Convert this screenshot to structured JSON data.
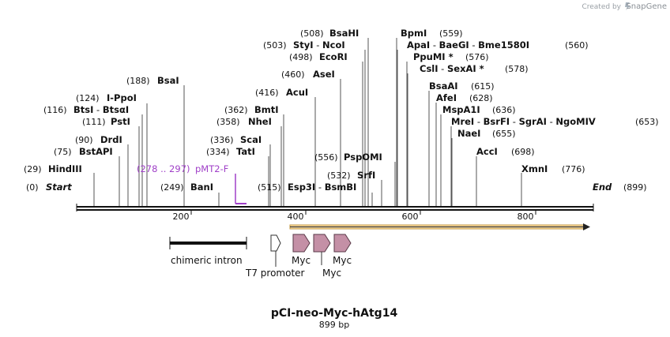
{
  "credit": {
    "prefix": "Created by",
    "brand": "SnapGene"
  },
  "title": "pCI-neo-Myc-hAtg14",
  "subtitle": "899 bp",
  "length": 899,
  "ends": {
    "start": "Start",
    "start_pos": "(0)",
    "end": "End",
    "end_pos": "(899)"
  },
  "ruler": [
    "200",
    "400",
    "600",
    "800"
  ],
  "sites": [
    {
      "pos": "(29)",
      "name": "HindIII"
    },
    {
      "pos": "(75)",
      "name": "BstAPI"
    },
    {
      "pos": "(90)",
      "name": "DrdI"
    },
    {
      "pos": "(111)",
      "name": "PstI"
    },
    {
      "pos": "(116)",
      "name": "BtsI",
      "sep": " - ",
      "name2": "BtsαI"
    },
    {
      "pos": "(124)",
      "name": "I-PpoI"
    },
    {
      "pos": "(188)",
      "name": "BsaI"
    },
    {
      "pos": "(249)",
      "name": "BanI"
    },
    {
      "pos": "(334)",
      "name": "TatI"
    },
    {
      "pos": "(336)",
      "name": "ScaI"
    },
    {
      "pos": "(358)",
      "name": "NheI"
    },
    {
      "pos": "(362)",
      "name": "BmtI"
    },
    {
      "pos": "(416)",
      "name": "AcuI"
    },
    {
      "pos": "(460)",
      "name": "AseI"
    },
    {
      "pos": "(498)",
      "name": "EcoRI"
    },
    {
      "pos": "(503)",
      "name": "StyI",
      "sep": " - ",
      "name2": "NcoI"
    },
    {
      "pos": "(508)",
      "name": "BsaHI"
    },
    {
      "pos": "(515)",
      "name": "Esp3I",
      "sep": " - ",
      "name2": "BsmBI"
    },
    {
      "pos": "(532)",
      "name": "SrfI"
    },
    {
      "pos": "(556)",
      "name": "PspOMI"
    },
    {
      "name": "BpmI",
      "pos_after": "(559)"
    },
    {
      "name": "ApaI",
      "sep": " - ",
      "name2": "BaeGI",
      "name3": "Bme1580I",
      "pos_after": "(560)"
    },
    {
      "name": "PpuMI *",
      "pos_after": "(576)"
    },
    {
      "name": "CslI",
      "sep": " - ",
      "name2": "SexAI *",
      "pos_after": "(578)"
    },
    {
      "name": "BsaAI",
      "pos_after": "(615)"
    },
    {
      "name": "AfeI",
      "pos_after": "(628)"
    },
    {
      "name": "MspA1I",
      "pos_after": "(636)"
    },
    {
      "name": "MreI",
      "sep": " - ",
      "name2": "BsrFI",
      "name3": "SgrAI",
      "name4": "NgoMIV",
      "pos_after": "(653)"
    },
    {
      "name": "NaeI",
      "pos_after": "(655)"
    },
    {
      "name": "AccI",
      "pos_after": "(698)"
    },
    {
      "name": "XmnI",
      "pos_after": "(776)"
    }
  ],
  "primer": {
    "range": "(278 .. 297)",
    "name": "pMT2-F"
  },
  "features": [
    {
      "name": "chimeric intron"
    },
    {
      "name": "T7 promoter"
    },
    {
      "name": "Myc"
    },
    {
      "name": "Myc"
    },
    {
      "name": "Myc"
    }
  ],
  "colors": {
    "myc": "#c490a6",
    "orf_fill": "#f2d6a0",
    "orf_stroke": "#c69a40",
    "primer": "#a040c8"
  }
}
